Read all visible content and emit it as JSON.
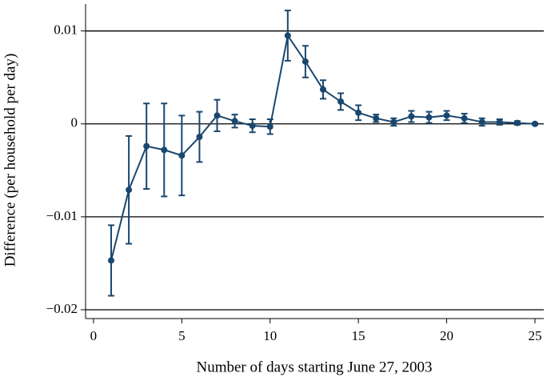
{
  "chart_data": {
    "type": "errorbar-line",
    "xlabel": "Number of days starting June 27, 2003",
    "ylabel": "Difference (per household per day)",
    "x": [
      1,
      2,
      3,
      4,
      5,
      6,
      7,
      8,
      9,
      10,
      11,
      12,
      13,
      14,
      15,
      16,
      17,
      18,
      19,
      20,
      21,
      22,
      23,
      24,
      25
    ],
    "series": [
      {
        "color": "#1a476f",
        "values": [
          -0.0147,
          -0.0071,
          -0.0024,
          -0.0028,
          -0.0034,
          -0.0014,
          0.0009,
          0.0003,
          -0.0002,
          -0.0003,
          0.0095,
          0.0067,
          0.0037,
          0.0024,
          0.0012,
          0.0006,
          0.0002,
          0.0008,
          0.0007,
          0.0009,
          0.0006,
          0.0002,
          0.0002,
          0.0001,
          0
        ],
        "errors": [
          0.0038,
          0.0058,
          0.0046,
          0.005,
          0.0043,
          0.0027,
          0.0017,
          0.0007,
          0.0007,
          0.0008,
          0.0027,
          0.0017,
          0.001,
          0.0009,
          0.0008,
          0.0004,
          0.0004,
          0.0006,
          0.0006,
          0.0005,
          0.0005,
          0.0004,
          0.0003,
          0.0002,
          0.0001
        ]
      }
    ],
    "xlim": [
      -0.45,
      25.5
    ],
    "xticks": [
      0,
      5,
      10,
      15,
      20,
      25
    ],
    "ylim": [
      -0.02095,
      0.0129
    ],
    "yticks": [
      {
        "value": -0.02,
        "label": "−0.02"
      },
      {
        "value": -0.01,
        "label": "−0.01"
      },
      0,
      0.01
    ],
    "grid": true
  }
}
